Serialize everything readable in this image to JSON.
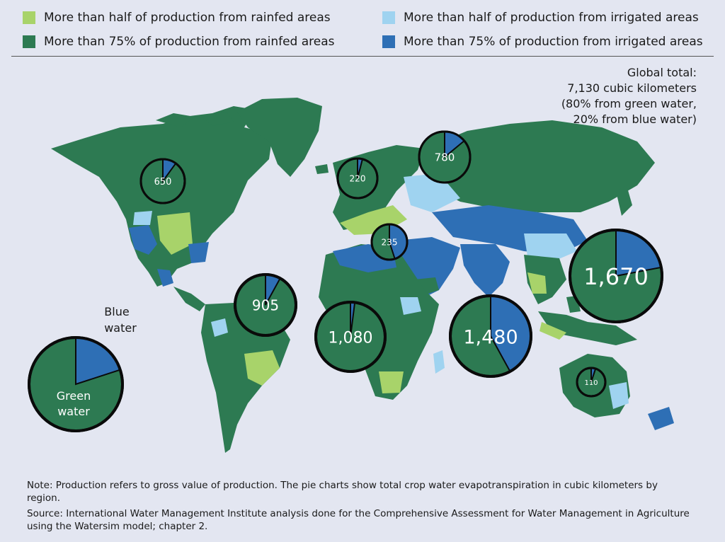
{
  "legend": {
    "rain_half": {
      "label": "More than half of production from rainfed areas",
      "color": "#a8d36a"
    },
    "rain_75": {
      "label": "More than 75% of production from rainfed areas",
      "color": "#2d7a52"
    },
    "irr_half": {
      "label": "More than half of production from irrigated areas",
      "color": "#9fd3f0"
    },
    "irr_75": {
      "label": "More than 75% of production from irrigated areas",
      "color": "#2e6fb5"
    }
  },
  "global_total": {
    "line1": "Global total:",
    "line2": "7,130 cubic kilometers",
    "line3": "(80% from green water,",
    "line4": "20% from blue water)"
  },
  "key_pie": {
    "blue_label_1": "Blue",
    "blue_label_2": "water",
    "green_label_1": "Green",
    "green_label_2": "water",
    "blue_share": 0.2
  },
  "colors": {
    "green_water": "#2d7a52",
    "blue_water": "#2e6fb5",
    "background": "#e3e6f1"
  },
  "chart_data": {
    "type": "pie",
    "units": "cubic kilometers",
    "regions": [
      {
        "value": 650,
        "label": "650",
        "blue_share": 0.1
      },
      {
        "value": 220,
        "label": "220",
        "blue_share": 0.04
      },
      {
        "value": 780,
        "label": "780",
        "blue_share": 0.14
      },
      {
        "value": 235,
        "label": "235",
        "blue_share": 0.45
      },
      {
        "value": 905,
        "label": "905",
        "blue_share": 0.08
      },
      {
        "value": 1080,
        "label": "1,080",
        "blue_share": 0.02
      },
      {
        "value": 1480,
        "label": "1,480",
        "blue_share": 0.42
      },
      {
        "value": 1670,
        "label": "1,670",
        "blue_share": 0.22
      },
      {
        "value": 110,
        "label": "110",
        "blue_share": 0.05
      }
    ]
  },
  "footer": {
    "note": "Note: Production refers to gross value of production. The pie charts show total crop water evapotranspiration in cubic kilometers by region.",
    "source": "Source: International Water Management Institute analysis done for the Comprehensive Assessment for Water Management in Agriculture using the Watersim model; chapter 2."
  }
}
